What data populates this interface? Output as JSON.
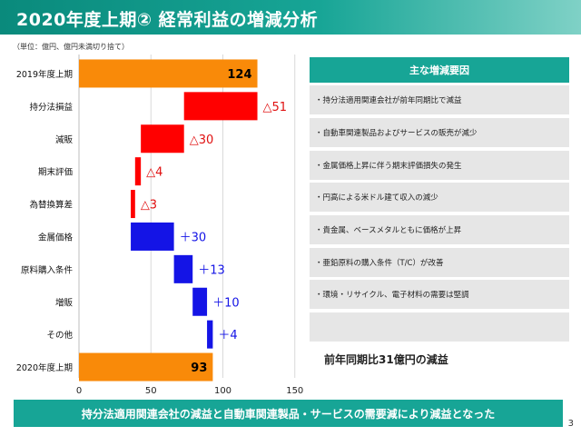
{
  "title": "2020年度上期② 経常利益の増減分析",
  "unit_note": "（単位：億円、億円未満切り捨て）",
  "chart_data": {
    "type": "bar",
    "orientation": "horizontal-waterfall",
    "categories": [
      "2019年度上期",
      "持分法損益",
      "減販",
      "期末評価",
      "為替換算差",
      "金属価格",
      "原料購入条件",
      "増販",
      "その他",
      "2020年度上期"
    ],
    "values": [
      124,
      -51,
      -30,
      -4,
      -3,
      30,
      13,
      10,
      4,
      93
    ],
    "value_labels": [
      "124",
      "△51",
      "△30",
      "△4",
      "△3",
      "＋30",
      "＋13",
      "＋10",
      "＋4",
      "93"
    ],
    "bar_kinds": [
      "total",
      "decrease",
      "decrease",
      "decrease",
      "decrease",
      "increase",
      "increase",
      "increase",
      "increase",
      "total"
    ],
    "xlim": [
      0,
      150
    ],
    "x_ticks": [
      "0",
      "50",
      "100",
      "150"
    ],
    "grid": true,
    "colors": {
      "total": "#f98a09",
      "decrease": "#ff0000",
      "increase": "#1414e6",
      "decrease_label": "#e01010",
      "increase_label": "#1414e6",
      "total_label": "#000000"
    }
  },
  "panel": {
    "heading": "主な増減要因",
    "reasons": [
      "・持分法適用関連会社が前年同期比で減益",
      "・自動車関連製品およびサービスの販売が減少",
      "・金属価格上昇に伴う期末評価損失の発生",
      "・円高による米ドル建て収入の減少",
      "・貴金属、ベースメタルともに価格が上昇",
      "・亜鉛原料の購入条件（T/C）が改善",
      "・環境・リサイクル、電子材料の需要は堅調",
      ""
    ],
    "summary": "前年同期比31億円の減益"
  },
  "banner": "持分法適用関連会社の減益と自動車関連製品・サービスの需要減により減益となった",
  "page_number": "3"
}
